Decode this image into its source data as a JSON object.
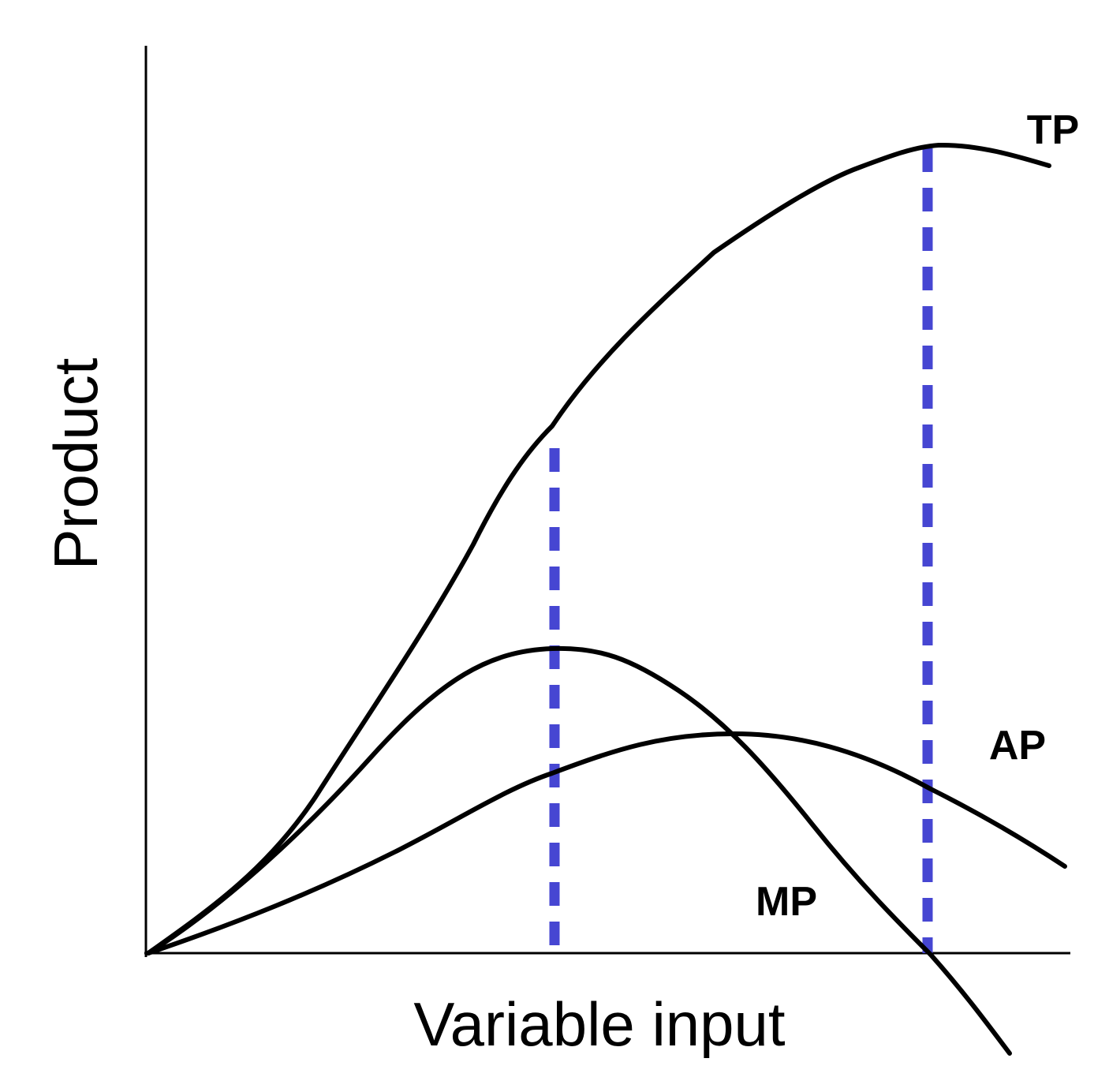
{
  "axes": {
    "y_label": "Product",
    "x_label": "Variable input"
  },
  "curves": {
    "tp": "TP",
    "ap": "AP",
    "mp": "MP"
  }
}
